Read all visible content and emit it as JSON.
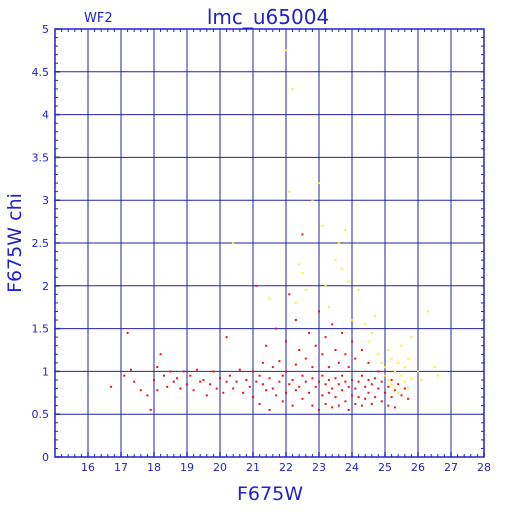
{
  "chart_data": {
    "type": "scatter",
    "title": "lmc_u65004",
    "subtitle": "WF2",
    "xlabel": "F675W",
    "ylabel": "F675W chi",
    "xlim": [
      15,
      28
    ],
    "ylim": [
      0,
      5
    ],
    "x_ticks": [
      16,
      17,
      18,
      19,
      20,
      21,
      22,
      23,
      24,
      25,
      26,
      27,
      28
    ],
    "y_ticks": [
      0,
      0.5,
      1,
      1.5,
      2,
      2.5,
      3,
      3.5,
      4,
      4.5,
      5
    ],
    "x_tick_labels": [
      "16",
      "17",
      "18",
      "19",
      "20",
      "21",
      "22",
      "23",
      "24",
      "25",
      "26",
      "27",
      "28"
    ],
    "y_tick_labels": [
      "0",
      "0.5",
      "1",
      "1.5",
      "2",
      "2.5",
      "3",
      "3.5",
      "4",
      "4.5",
      "5"
    ],
    "grid": true,
    "colors": {
      "frame": "#2222cc",
      "grid": "#2222aa",
      "red_series": "#ee1111",
      "yellow_series": "#ffee22"
    },
    "series": [
      {
        "color": "#ee1111",
        "points": [
          [
            16.7,
            0.82
          ],
          [
            17.1,
            0.95
          ],
          [
            17.2,
            1.45
          ],
          [
            17.3,
            1.02
          ],
          [
            17.4,
            0.88
          ],
          [
            17.6,
            0.78
          ],
          [
            17.8,
            0.72
          ],
          [
            17.9,
            0.55
          ],
          [
            18.0,
            0.9
          ],
          [
            18.1,
            1.05
          ],
          [
            18.1,
            0.78
          ],
          [
            18.2,
            1.2
          ],
          [
            18.3,
            0.95
          ],
          [
            18.4,
            0.82
          ],
          [
            18.5,
            1.0
          ],
          [
            18.6,
            0.88
          ],
          [
            18.7,
            0.92
          ],
          [
            18.8,
            0.8
          ],
          [
            18.9,
            1.0
          ],
          [
            19.0,
            0.85
          ],
          [
            19.1,
            0.95
          ],
          [
            19.2,
            0.78
          ],
          [
            19.3,
            1.02
          ],
          [
            19.4,
            0.88
          ],
          [
            19.5,
            0.9
          ],
          [
            19.6,
            0.72
          ],
          [
            19.7,
            0.85
          ],
          [
            19.8,
            1.0
          ],
          [
            19.9,
            0.8
          ],
          [
            20.0,
            0.92
          ],
          [
            20.1,
            0.75
          ],
          [
            20.2,
            0.88
          ],
          [
            20.2,
            1.4
          ],
          [
            20.3,
            0.95
          ],
          [
            20.4,
            0.8
          ],
          [
            20.5,
            0.88
          ],
          [
            20.6,
            1.02
          ],
          [
            20.7,
            0.75
          ],
          [
            20.8,
            0.9
          ],
          [
            20.9,
            0.82
          ],
          [
            21.0,
            1.0
          ],
          [
            21.0,
            0.7
          ],
          [
            21.1,
            0.88
          ],
          [
            21.1,
            2.0
          ],
          [
            21.2,
            0.95
          ],
          [
            21.2,
            0.62
          ],
          [
            21.3,
            0.85
          ],
          [
            21.3,
            1.1
          ],
          [
            21.4,
            0.78
          ],
          [
            21.4,
            1.3
          ],
          [
            21.5,
            0.92
          ],
          [
            21.5,
            0.55
          ],
          [
            21.6,
            1.05
          ],
          [
            21.6,
            0.8
          ],
          [
            21.7,
            0.72
          ],
          [
            21.7,
            1.5
          ],
          [
            21.8,
            0.88
          ],
          [
            21.8,
            1.12
          ],
          [
            21.9,
            0.65
          ],
          [
            21.9,
            0.95
          ],
          [
            22.0,
            1.0
          ],
          [
            22.0,
            0.75
          ],
          [
            22.0,
            1.35
          ],
          [
            22.1,
            0.85
          ],
          [
            22.1,
            1.9
          ],
          [
            22.2,
            0.9
          ],
          [
            22.2,
            0.6
          ],
          [
            22.3,
            1.08
          ],
          [
            22.3,
            0.78
          ],
          [
            22.3,
            1.6
          ],
          [
            22.4,
            0.82
          ],
          [
            22.4,
            1.25
          ],
          [
            22.5,
            0.95
          ],
          [
            22.5,
            0.68
          ],
          [
            22.5,
            2.6
          ],
          [
            22.6,
            0.88
          ],
          [
            22.6,
            1.15
          ],
          [
            22.7,
            0.75
          ],
          [
            22.7,
            1.45
          ],
          [
            22.8,
            0.92
          ],
          [
            22.8,
            0.6
          ],
          [
            22.8,
            1.05
          ],
          [
            22.9,
            0.82
          ],
          [
            22.9,
            1.3
          ],
          [
            23.0,
            0.88
          ],
          [
            23.0,
            0.55
          ],
          [
            23.0,
            1.7
          ],
          [
            23.1,
            0.95
          ],
          [
            23.1,
            0.72
          ],
          [
            23.1,
            1.2
          ],
          [
            23.2,
            0.85
          ],
          [
            23.2,
            0.62
          ],
          [
            23.2,
            1.4
          ],
          [
            23.3,
            0.9
          ],
          [
            23.3,
            0.75
          ],
          [
            23.3,
            1.05
          ],
          [
            23.4,
            0.8
          ],
          [
            23.4,
            1.55
          ],
          [
            23.4,
            0.58
          ],
          [
            23.5,
            0.92
          ],
          [
            23.5,
            0.7
          ],
          [
            23.5,
            1.25
          ],
          [
            23.6,
            0.85
          ],
          [
            23.6,
            0.6
          ],
          [
            23.6,
            1.1
          ],
          [
            23.7,
            0.78
          ],
          [
            23.7,
            0.95
          ],
          [
            23.7,
            1.45
          ],
          [
            23.8,
            0.88
          ],
          [
            23.8,
            0.65
          ],
          [
            23.8,
            1.2
          ],
          [
            23.9,
            0.82
          ],
          [
            23.9,
            0.55
          ],
          [
            23.9,
            1.05
          ],
          [
            24.0,
            0.9
          ],
          [
            24.0,
            0.72
          ],
          [
            24.0,
            1.35
          ],
          [
            24.1,
            0.8
          ],
          [
            24.1,
            0.62
          ],
          [
            24.1,
            1.15
          ],
          [
            24.2,
            0.88
          ],
          [
            24.2,
            0.7
          ],
          [
            24.3,
            0.95
          ],
          [
            24.3,
            0.6
          ],
          [
            24.3,
            1.25
          ],
          [
            24.4,
            0.82
          ],
          [
            24.4,
            0.68
          ],
          [
            24.5,
            0.9
          ],
          [
            24.5,
            0.75
          ],
          [
            24.5,
            1.1
          ],
          [
            24.6,
            0.85
          ],
          [
            24.6,
            0.62
          ],
          [
            24.7,
            0.92
          ],
          [
            24.7,
            0.7
          ],
          [
            24.8,
            0.8
          ],
          [
            24.8,
            1.0
          ],
          [
            24.9,
            0.88
          ],
          [
            24.9,
            0.65
          ],
          [
            25.0,
            0.75
          ],
          [
            25.0,
            0.95
          ],
          [
            25.1,
            0.82
          ],
          [
            25.1,
            0.6
          ],
          [
            25.2,
            0.9
          ],
          [
            25.2,
            0.7
          ],
          [
            25.3,
            0.78
          ],
          [
            25.3,
            0.58
          ],
          [
            25.4,
            0.85
          ],
          [
            25.5,
            0.72
          ],
          [
            25.6,
            0.8
          ],
          [
            25.7,
            0.68
          ]
        ]
      },
      {
        "color": "#ffee22",
        "points": [
          [
            20.4,
            2.5
          ],
          [
            21.5,
            1.85
          ],
          [
            22.0,
            4.75
          ],
          [
            22.1,
            3.1
          ],
          [
            22.2,
            4.3
          ],
          [
            22.3,
            1.8
          ],
          [
            22.4,
            2.25
          ],
          [
            22.5,
            2.15
          ],
          [
            22.6,
            1.95
          ],
          [
            22.8,
            3.0
          ],
          [
            23.0,
            3.2
          ],
          [
            23.1,
            2.7
          ],
          [
            23.2,
            2.0
          ],
          [
            23.3,
            1.75
          ],
          [
            23.5,
            2.3
          ],
          [
            23.6,
            2.5
          ],
          [
            23.7,
            2.2
          ],
          [
            23.8,
            2.65
          ],
          [
            23.9,
            2.05
          ],
          [
            24.0,
            1.6
          ],
          [
            24.2,
            1.95
          ],
          [
            24.4,
            1.55
          ],
          [
            24.5,
            1.35
          ],
          [
            24.6,
            1.45
          ],
          [
            24.7,
            1.65
          ],
          [
            24.8,
            1.2
          ],
          [
            24.9,
            1.1
          ],
          [
            25.0,
            1.05
          ],
          [
            25.0,
            0.95
          ],
          [
            25.1,
            1.25
          ],
          [
            25.1,
            0.9
          ],
          [
            25.2,
            1.15
          ],
          [
            25.2,
            0.85
          ],
          [
            25.3,
            1.0
          ],
          [
            25.3,
            0.8
          ],
          [
            25.4,
            1.1
          ],
          [
            25.4,
            0.75
          ],
          [
            25.5,
            0.95
          ],
          [
            25.5,
            1.3
          ],
          [
            25.6,
            0.88
          ],
          [
            25.6,
            1.05
          ],
          [
            25.7,
            0.8
          ],
          [
            25.7,
            1.15
          ],
          [
            25.8,
            0.92
          ],
          [
            25.8,
            1.4
          ],
          [
            26.0,
            1.0
          ],
          [
            26.1,
            0.9
          ],
          [
            26.3,
            1.7
          ],
          [
            26.5,
            1.05
          ],
          [
            26.6,
            0.95
          ]
        ]
      }
    ]
  }
}
